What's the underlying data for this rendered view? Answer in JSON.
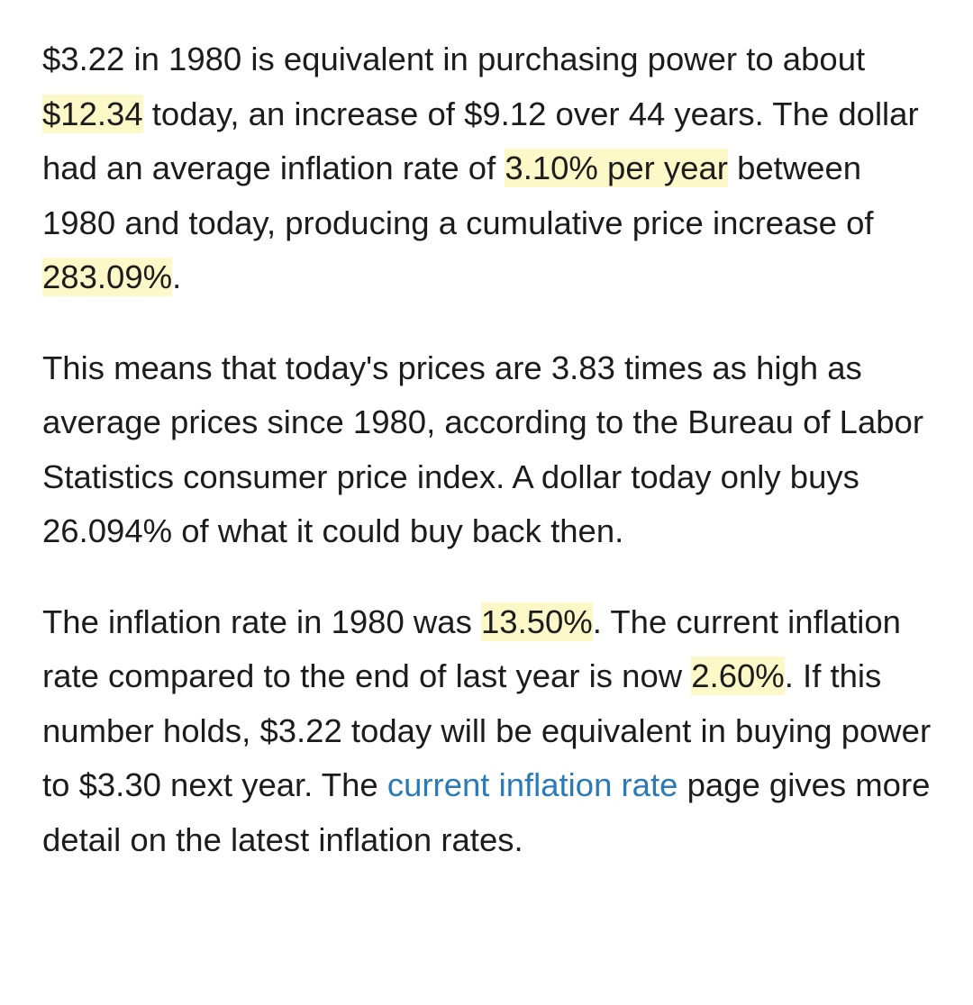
{
  "colors": {
    "text": "#1c1c1e",
    "highlight": "#fdf8c7",
    "link": "#2a7ab8",
    "background": "#ffffff"
  },
  "paragraphs": [
    {
      "segments": [
        {
          "text": "$3.22 in 1980 is equivalent in purchasing power to about "
        },
        {
          "text": "$12.34",
          "highlight": true
        },
        {
          "text": " today, an increase of $9.12 over 44 years. The dollar had an average inflation rate of "
        },
        {
          "text": "3.10% per year",
          "highlight": true
        },
        {
          "text": " between 1980 and today, producing a cumulative price increase of "
        },
        {
          "text": "283.09%",
          "highlight": true
        },
        {
          "text": "."
        }
      ]
    },
    {
      "segments": [
        {
          "text": "This means that today's prices are 3.83 times as high as average prices since 1980, according to the Bureau of Labor Statistics consumer price index. A dollar today only buys 26.094% of what it could buy back then."
        }
      ]
    },
    {
      "segments": [
        {
          "text": "The inflation rate in 1980 was "
        },
        {
          "text": "13.50%",
          "highlight": true
        },
        {
          "text": ". The current inflation rate compared to the end of last year is now "
        },
        {
          "text": "2.60%",
          "highlight": true
        },
        {
          "text": ". If this number holds, $3.22 today will be equivalent in buying power to $3.30 next year. The "
        },
        {
          "text": "current inflation rate",
          "link": true
        },
        {
          "text": " page gives more detail on the latest inflation rates."
        }
      ]
    }
  ]
}
